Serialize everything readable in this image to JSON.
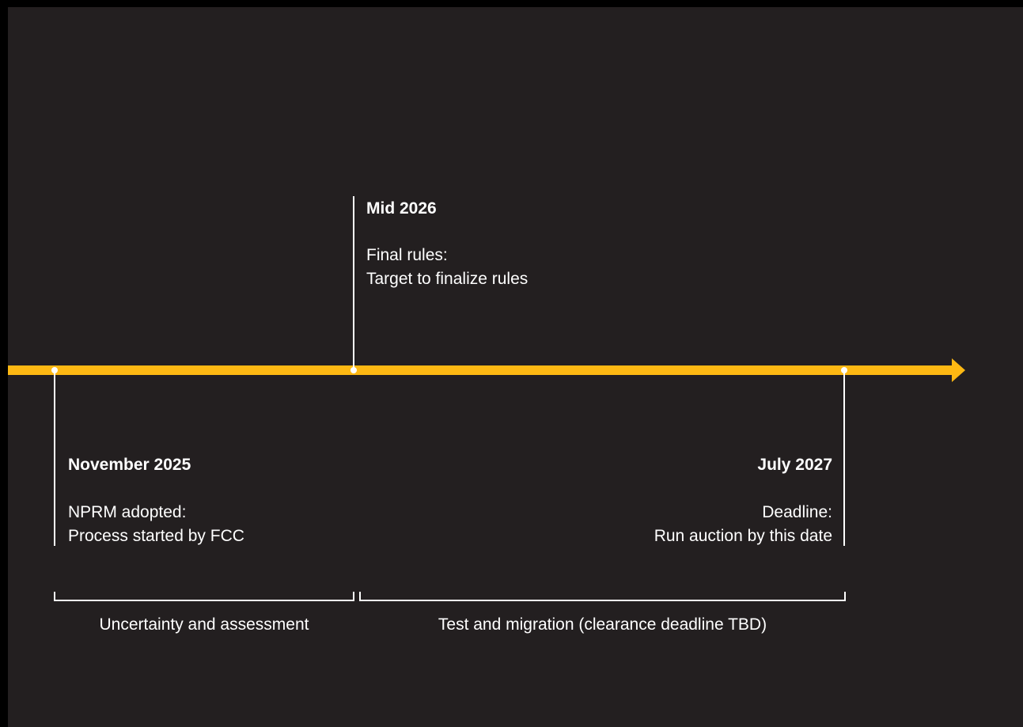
{
  "colors": {
    "background": "#231f20",
    "accent": "#fdb813",
    "text": "#ffffff"
  },
  "milestones": [
    {
      "date": "November 2025",
      "heading": "NPRM adopted:",
      "detail": "Process started by FCC",
      "side": "below"
    },
    {
      "date": "Mid 2026",
      "heading": "Final rules:",
      "detail": "Target to finalize rules",
      "side": "above"
    },
    {
      "date": "July 2027",
      "heading": "Deadline:",
      "detail": "Run auction by this date",
      "side": "below"
    }
  ],
  "phases": [
    {
      "label": "Uncertainty and assessment"
    },
    {
      "label": "Test and migration (clearance deadline TBD)"
    }
  ]
}
